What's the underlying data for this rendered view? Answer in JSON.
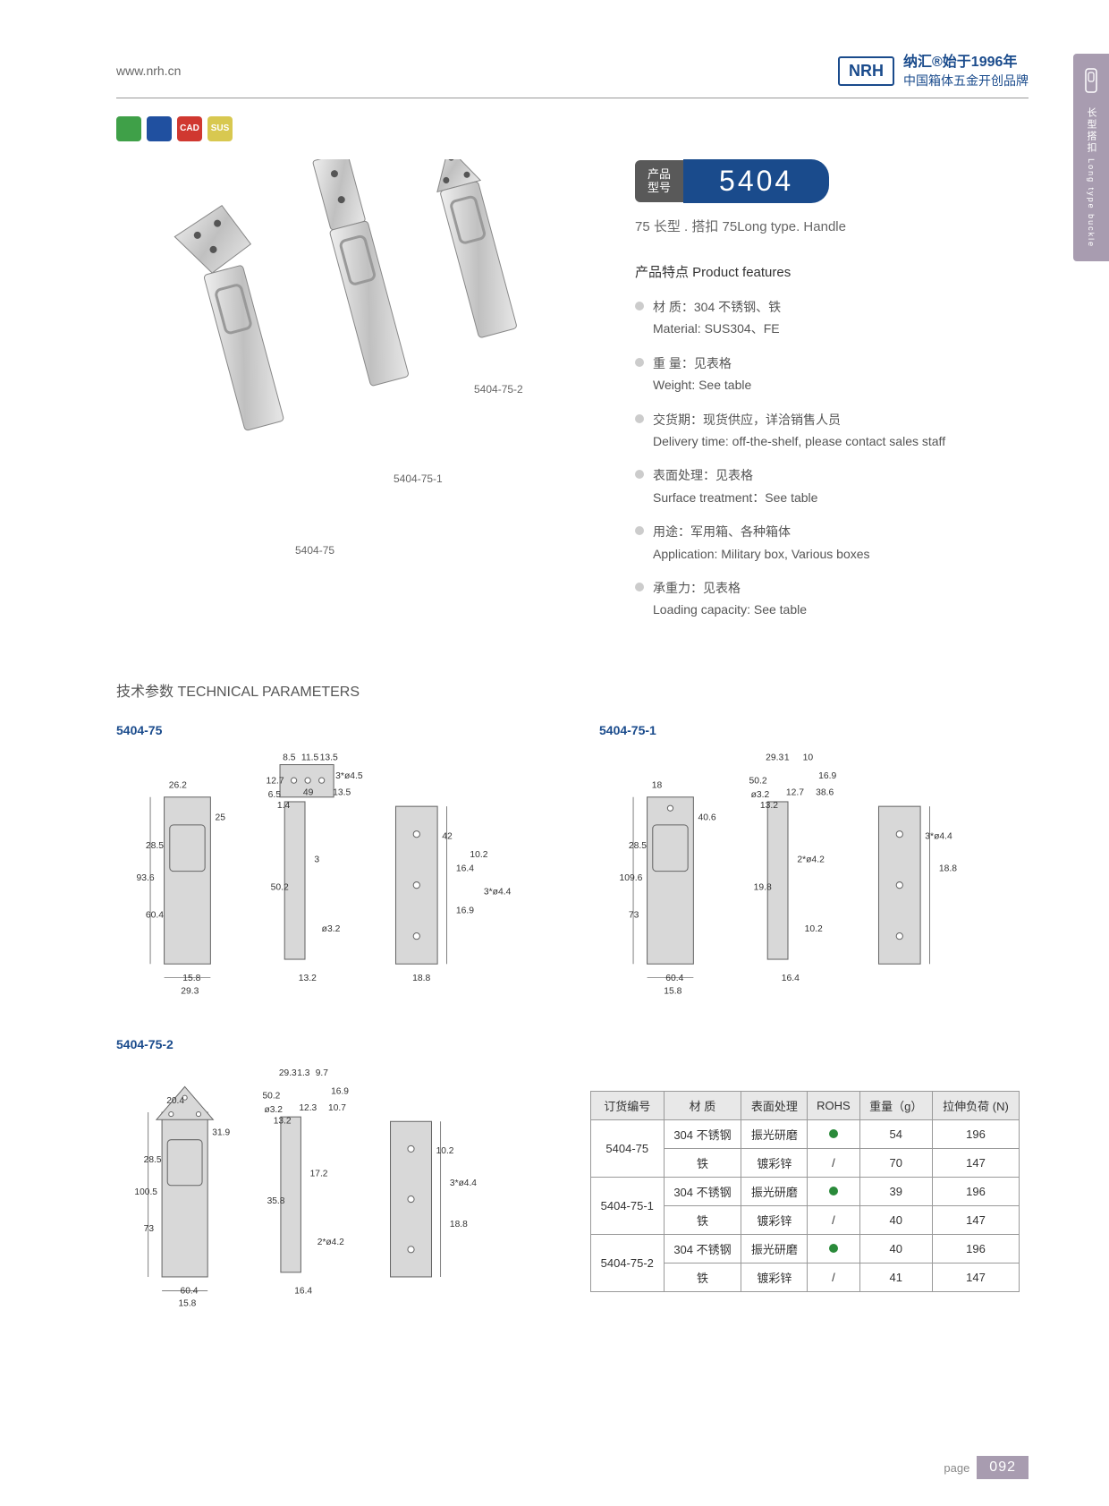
{
  "header": {
    "url": "www.nrh.cn",
    "brand_logo": "NRH",
    "brand_line1": "纳汇®始于1996年",
    "brand_line2": "中国箱体五金开创品牌"
  },
  "icons": {
    "colors": [
      "#3fa048",
      "#2050a0",
      "#d03830",
      "#d8c850"
    ],
    "labels": [
      "",
      "",
      "CAD",
      "SUS"
    ]
  },
  "model": {
    "label_cn": "产品\n型号",
    "number": "5404",
    "subtitle": "75 长型 . 搭扣   75Long type. Handle"
  },
  "features": {
    "title": "产品特点  Product features",
    "items": [
      {
        "cn": "材 质：304 不锈钢、铁",
        "en": "Material: SUS304、FE"
      },
      {
        "cn": "重 量：见表格",
        "en": "Weight: See table"
      },
      {
        "cn": "交货期：现货供应，详洽销售人员",
        "en": "Delivery time: off-the-shelf, please contact sales staff"
      },
      {
        "cn": "表面处理：见表格",
        "en": "Surface treatment：See table"
      },
      {
        "cn": "用途：军用箱、各种箱体",
        "en": "Application: Military box, Various boxes"
      },
      {
        "cn": "承重力：见表格",
        "en": "Loading capacity: See table"
      }
    ]
  },
  "product_labels": [
    "5404-75",
    "5404-75-1",
    "5404-75-2"
  ],
  "tech": {
    "title": "技术参数   TECHNICAL PARAMETERS",
    "diagrams": [
      "5404-75",
      "5404-75-1",
      "5404-75-2"
    ]
  },
  "dimensions": {
    "5404-75": [
      "26.2",
      "93.6",
      "28.5",
      "60.4",
      "25",
      "15.8",
      "29.3",
      "8.5",
      "11.5",
      "13.5",
      "12.7",
      "6.5",
      "1.4",
      "49",
      "13.5",
      "50.2",
      "3",
      "ø3.2",
      "13.2",
      "3*ø4.5",
      "42",
      "16.4",
      "16.9",
      "10.2",
      "3*ø4.4",
      "18.8"
    ],
    "5404-75-1": [
      "18",
      "109.6",
      "28.5",
      "73",
      "40.6",
      "60.4",
      "15.8",
      "29.3",
      "1",
      "10",
      "50.2",
      "ø3.2",
      "13.2",
      "12.7",
      "38.6",
      "19.8",
      "2*ø4.2",
      "10.2",
      "16.4",
      "16.9",
      "3*ø4.4",
      "18.8"
    ],
    "5404-75-2": [
      "20.4",
      "100.5",
      "28.5",
      "73",
      "31.9",
      "60.4",
      "15.8",
      "29.3",
      "1.3",
      "9.7",
      "50.2",
      "ø3.2",
      "13.2",
      "12.3",
      "10.7",
      "35.8",
      "17.2",
      "2*ø4.2",
      "16.4",
      "16.9",
      "10.2",
      "3*ø4.4",
      "18.8"
    ]
  },
  "spec_table": {
    "headers": [
      "订货编号",
      "材 质",
      "表面处理",
      "ROHS",
      "重量（g）",
      "拉伸负荷 (N)"
    ],
    "rows": [
      {
        "model": "5404-75",
        "variants": [
          {
            "mat": "304 不锈钢",
            "surf": "振光研磨",
            "rohs": "dot",
            "weight": "54",
            "load": "196"
          },
          {
            "mat": "铁",
            "surf": "镀彩锌",
            "rohs": "/",
            "weight": "70",
            "load": "147"
          }
        ]
      },
      {
        "model": "5404-75-1",
        "variants": [
          {
            "mat": "304 不锈钢",
            "surf": "振光研磨",
            "rohs": "dot",
            "weight": "39",
            "load": "196"
          },
          {
            "mat": "铁",
            "surf": "镀彩锌",
            "rohs": "/",
            "weight": "40",
            "load": "147"
          }
        ]
      },
      {
        "model": "5404-75-2",
        "variants": [
          {
            "mat": "304 不锈钢",
            "surf": "振光研磨",
            "rohs": "dot",
            "weight": "40",
            "load": "196"
          },
          {
            "mat": "铁",
            "surf": "镀彩锌",
            "rohs": "/",
            "weight": "41",
            "load": "147"
          }
        ]
      }
    ]
  },
  "side_tab": {
    "cn": "长型搭扣",
    "en": "Long type buckle"
  },
  "page": {
    "label": "page",
    "number": "092"
  }
}
